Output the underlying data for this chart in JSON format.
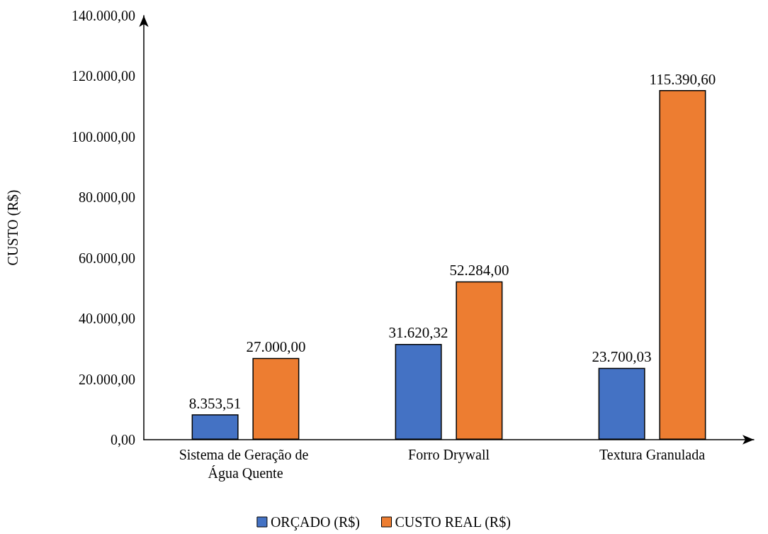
{
  "chart_data": {
    "type": "bar",
    "ylabel": "CUSTO (R$)",
    "categories": [
      "Sistema de Geração de Água Quente",
      "Forro Drywall",
      "Textura Granulada"
    ],
    "series": [
      {
        "name": "ORÇADO (R$)",
        "color": "#4472c4",
        "values": [
          8353.51,
          31620.32,
          23700.03
        ],
        "value_labels": [
          "8.353,51",
          "31.620,32",
          "23.700,03"
        ]
      },
      {
        "name": "CUSTO REAL (R$)",
        "color": "#ed7d31",
        "values": [
          27000.0,
          52284.0,
          115390.6
        ],
        "value_labels": [
          "27.000,00",
          "52.284,00",
          "115.390,60"
        ]
      }
    ],
    "ylim": [
      0,
      140000
    ],
    "yticks": [
      {
        "value": 0,
        "label": "0,00"
      },
      {
        "value": 20000,
        "label": "20.000,00"
      },
      {
        "value": 40000,
        "label": "40.000,00"
      },
      {
        "value": 60000,
        "label": "60.000,00"
      },
      {
        "value": 80000,
        "label": "80.000,00"
      },
      {
        "value": 100000,
        "label": "100.000,00"
      },
      {
        "value": 120000,
        "label": "120.000,00"
      },
      {
        "value": 140000,
        "label": "140.000,00"
      }
    ],
    "grid": false,
    "legend": "bottom"
  }
}
